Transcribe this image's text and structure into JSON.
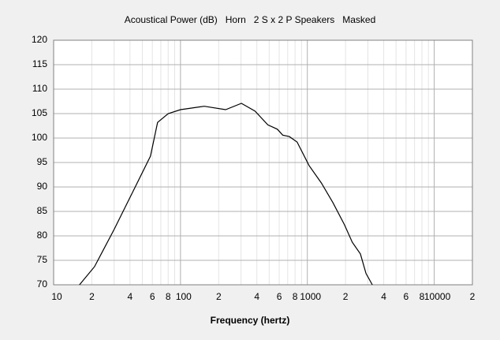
{
  "chart_data": {
    "type": "line",
    "title": "Acoustical Power (dB)   Horn   2 S x 2 P Speakers   Masked",
    "xlabel": "Frequency (hertz)",
    "xscale": "log",
    "xlim": [
      10,
      20000
    ],
    "ylim": [
      70,
      120
    ],
    "xticks": [
      10,
      {
        "value": 20,
        "label": "2"
      },
      {
        "value": 40,
        "label": "4"
      },
      {
        "value": 60,
        "label": "6"
      },
      {
        "value": 80,
        "label": "8"
      },
      100,
      {
        "value": 200,
        "label": "2"
      },
      {
        "value": 400,
        "label": "4"
      },
      {
        "value": 600,
        "label": "6"
      },
      {
        "value": 800,
        "label": "8"
      },
      1000,
      {
        "value": 2000,
        "label": "2"
      },
      {
        "value": 4000,
        "label": "4"
      },
      {
        "value": 6000,
        "label": "6"
      },
      {
        "value": 8000,
        "label": "8"
      },
      10000,
      {
        "value": 20000,
        "label": "2"
      }
    ],
    "xminor": [
      30,
      50,
      70,
      90,
      300,
      500,
      700,
      900,
      3000,
      5000,
      7000,
      9000
    ],
    "yticks": [
      70,
      75,
      80,
      85,
      90,
      95,
      100,
      105,
      110,
      115,
      120
    ],
    "grid": true,
    "series": [
      {
        "color": "#000000",
        "x": [
          16,
          21,
          30,
          43,
          58,
          66,
          80,
          100,
          154,
          227,
          302,
          387,
          488,
          580,
          640,
          720,
          830,
          1030,
          1290,
          1590,
          1960,
          2260,
          2620,
          2900,
          3250
        ],
        "values": [
          70,
          73.7,
          81.3,
          89.5,
          96.3,
          103.2,
          105,
          105.8,
          106.5,
          105.8,
          107.1,
          105.5,
          102.7,
          101.8,
          100.6,
          100.3,
          99.2,
          94.4,
          90.8,
          86.8,
          82.3,
          78.7,
          76.3,
          72.3,
          70
        ]
      }
    ]
  }
}
